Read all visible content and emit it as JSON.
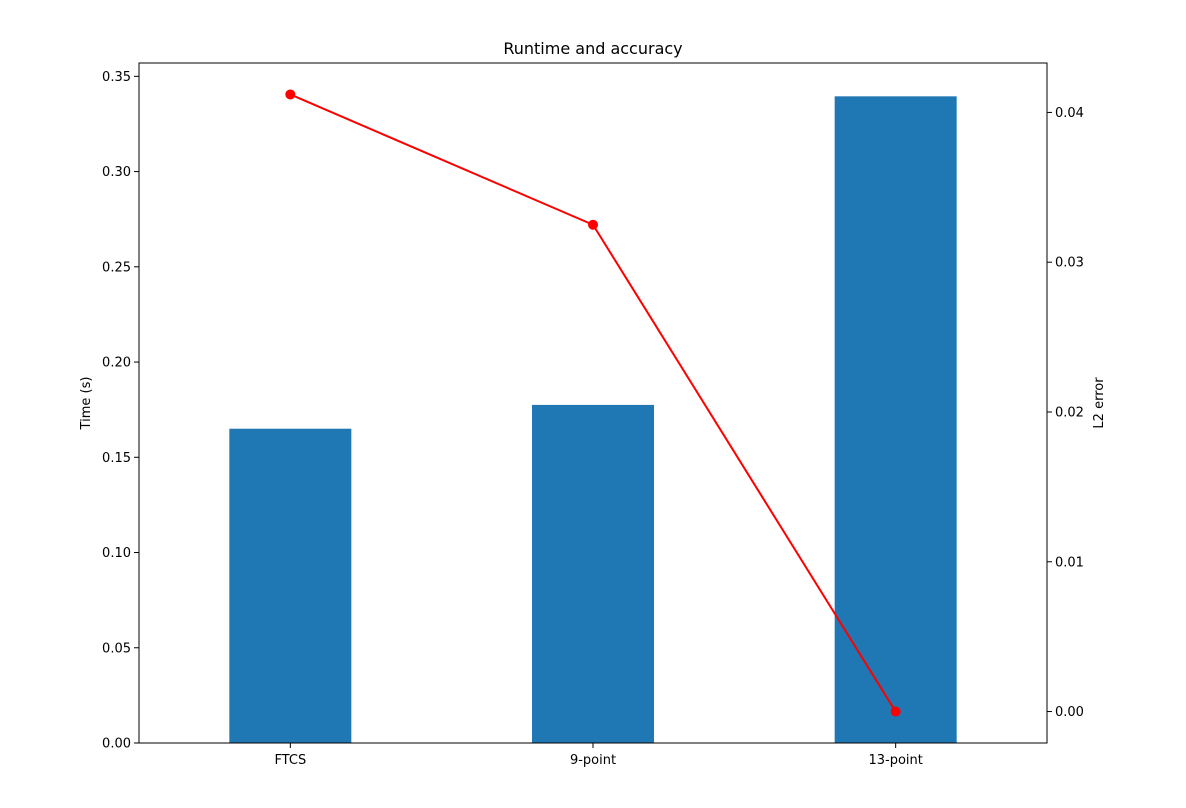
{
  "chart_data": {
    "type": "bar",
    "title": "Runtime and accuracy",
    "categories": [
      "FTCS",
      "9-point",
      "13-point"
    ],
    "xlabel": "",
    "ylabel": "Time (s)",
    "ylim": [
      0,
      0.357
    ],
    "yticks": [
      "0.00",
      "0.05",
      "0.10",
      "0.15",
      "0.20",
      "0.25",
      "0.30",
      "0.35"
    ],
    "y2label": "L2 error",
    "y2lim": [
      -0.0021,
      0.0433
    ],
    "y2ticks": [
      "0.00",
      "0.01",
      "0.02",
      "0.03",
      "0.04"
    ],
    "grid": false,
    "series": [
      {
        "type": "bar",
        "axis": "left",
        "color": "#1f77b4",
        "values": [
          0.165,
          0.1775,
          0.3395
        ]
      },
      {
        "type": "line",
        "axis": "right",
        "color": "#ff0000",
        "marker": "circle",
        "values": [
          0.0412,
          0.0325,
          0.0
        ]
      }
    ]
  }
}
